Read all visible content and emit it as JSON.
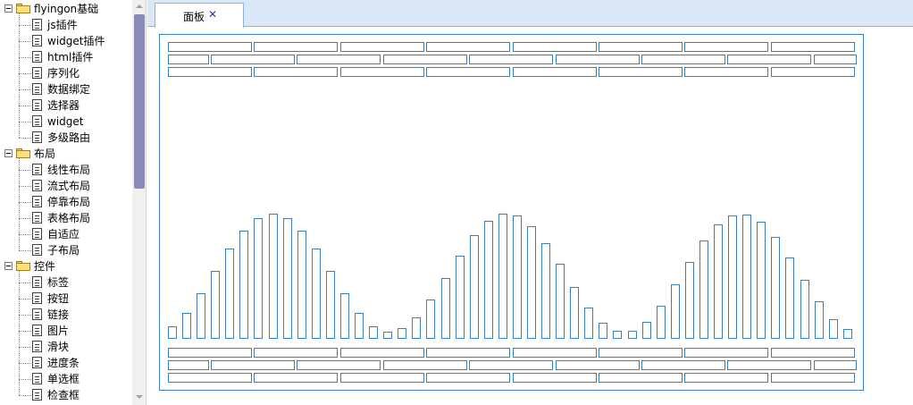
{
  "sidebar": {
    "groups": [
      {
        "label": "flyingon基础",
        "items": [
          "js插件",
          "widget插件",
          "html插件",
          "序列化",
          "数据绑定",
          "选择器",
          "widget",
          "多级路由"
        ]
      },
      {
        "label": "布局",
        "items": [
          "线性布局",
          "流式布局",
          "停靠布局",
          "表格布局",
          "自适应",
          "子布局"
        ]
      },
      {
        "label": "控件",
        "items": [
          "标签",
          "按钮",
          "链接",
          "图片",
          "滑块",
          "进度条",
          "单选框",
          "检查框"
        ]
      }
    ]
  },
  "tabs": [
    {
      "label": "面板",
      "close": "✕"
    }
  ],
  "colors": {
    "accent": "#3a7bc0",
    "tabstrip": "#dbe8f7",
    "scroll_thumb": "#8a8ab8"
  },
  "icons": {
    "group_toggle": "collapse-toggle-icon",
    "group": "folder-open-icon",
    "item": "document-icon"
  }
}
